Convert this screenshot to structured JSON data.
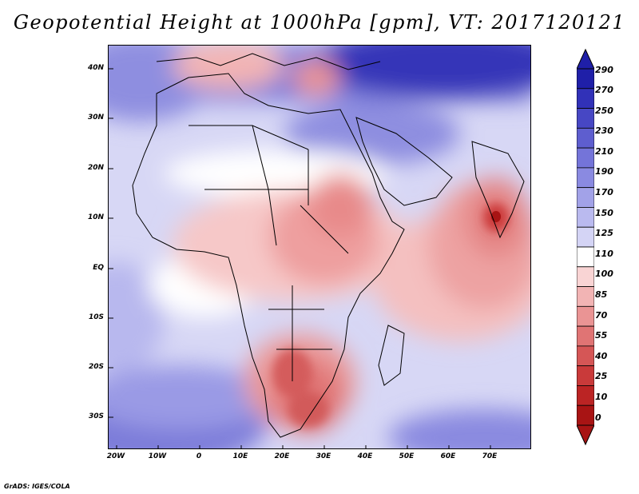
{
  "title": "Geopotential Height at 1000hPa [gpm], VT: 2017120121",
  "footer": "GrADS: IGES/COLA",
  "map": {
    "y_ticks": [
      "40N",
      "30N",
      "20N",
      "10N",
      "EQ",
      "10S",
      "20S",
      "30S"
    ],
    "x_ticks": [
      "20W",
      "10W",
      "0",
      "10E",
      "20E",
      "30E",
      "40E",
      "50E",
      "60E",
      "70E"
    ],
    "lon_range": [
      -22,
      80
    ],
    "lat_range": [
      -37,
      45
    ]
  },
  "colorbar": {
    "labels": [
      "290",
      "270",
      "250",
      "230",
      "210",
      "190",
      "170",
      "150",
      "125",
      "110",
      "100",
      "85",
      "70",
      "55",
      "40",
      "25",
      "10",
      "0"
    ],
    "colors": [
      "#1f1fa8",
      "#3131b8",
      "#4747c4",
      "#5e5ecf",
      "#7474d9",
      "#8a8ae1",
      "#a2a2e8",
      "#babaef",
      "#d4d4f5",
      "#ffffff",
      "#f9d4d4",
      "#f2b4b4",
      "#ea9494",
      "#e07474",
      "#d55656",
      "#c93a3a",
      "#bb2424",
      "#a81414"
    ]
  }
}
